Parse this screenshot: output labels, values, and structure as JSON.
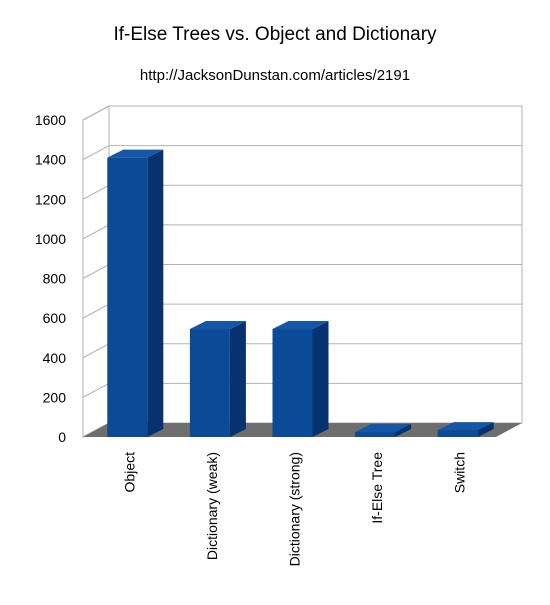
{
  "chart_data": {
    "type": "bar",
    "title": "If-Else Trees vs. Object and Dictionary",
    "subtitle": "http://JacksonDunstan.com/articles/2191",
    "categories": [
      "Object",
      "Dictionary (weak)",
      "Dictionary (strong)",
      "If-Else Tree",
      "Switch"
    ],
    "values": [
      1410,
      545,
      545,
      25,
      35
    ],
    "xlabel": "",
    "ylabel": "",
    "ylim": [
      0,
      1600
    ],
    "yticks": [
      0,
      200,
      400,
      600,
      800,
      1000,
      1200,
      1400,
      1600
    ],
    "grid": true,
    "legend": "none",
    "style": "3d",
    "colors": {
      "bar_front": "#0b4a96",
      "bar_side": "#063270",
      "bar_top": "#1556a8",
      "floor": "#6e6e6e",
      "grid": "#b3b3b3",
      "wall": "#ffffff"
    }
  }
}
